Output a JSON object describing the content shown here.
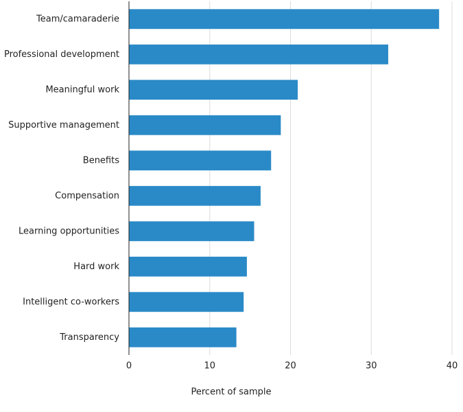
{
  "chart_data": {
    "type": "bar",
    "orientation": "horizontal",
    "x_label": "Percent of sample",
    "categories": [
      "Team/camaraderie",
      "Professional development",
      "Meaningful work",
      "Supportive management",
      "Benefits",
      "Compensation",
      "Learning opportunities",
      "Hard work",
      "Intelligent co-workers",
      "Transparency"
    ],
    "values": [
      38.4,
      32.1,
      20.9,
      18.8,
      17.6,
      16.3,
      15.5,
      14.6,
      14.2,
      13.3
    ],
    "color": "#2a8ac7",
    "xlim": [
      0,
      40
    ],
    "xticks": [
      0,
      10,
      20,
      30,
      40
    ],
    "grid": true
  }
}
